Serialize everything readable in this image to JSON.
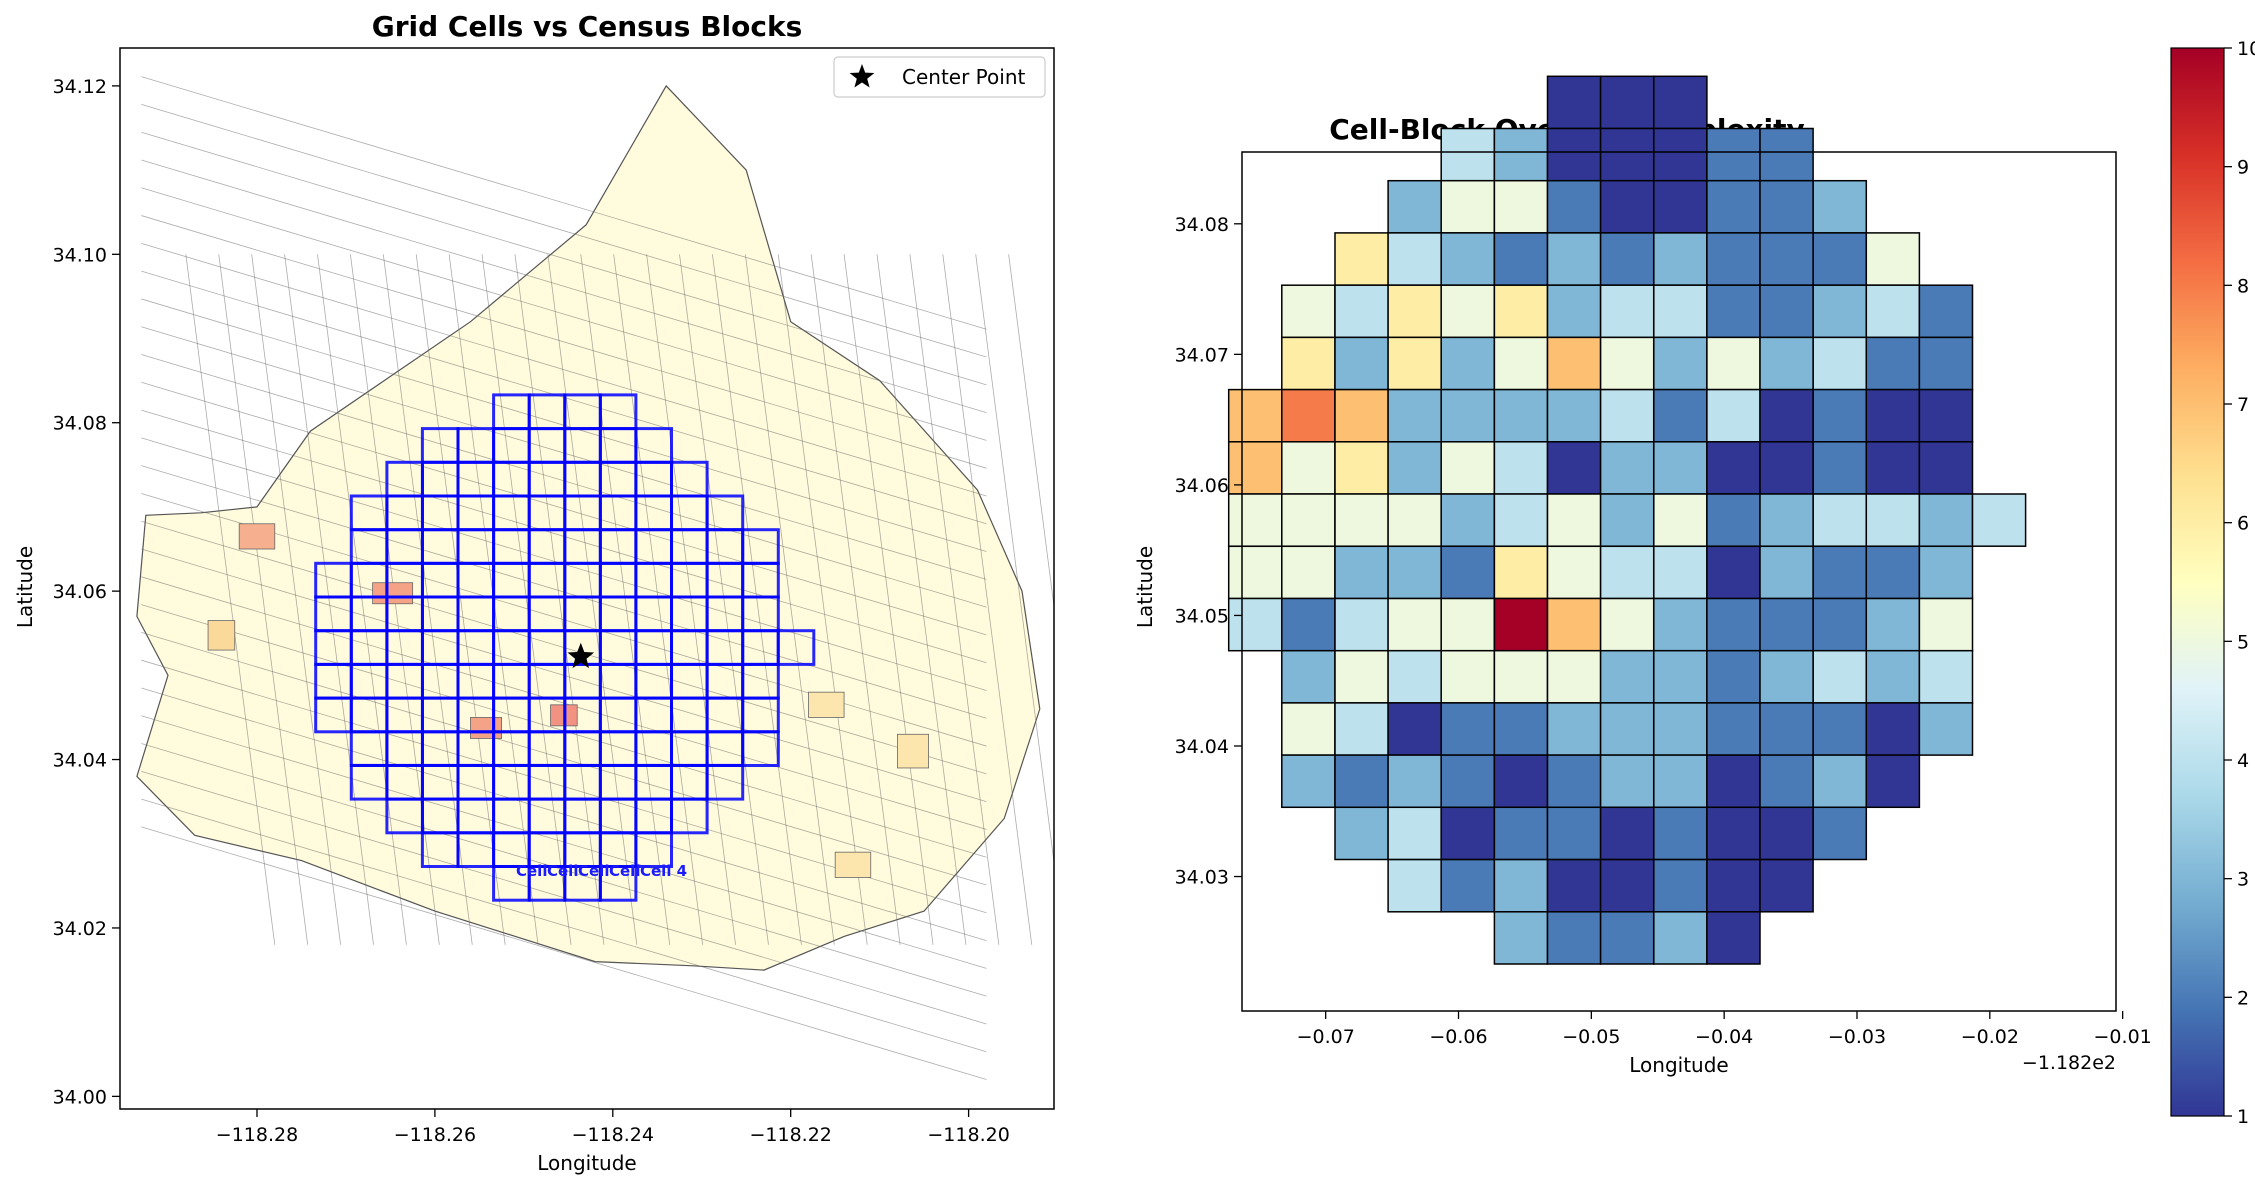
{
  "chart_data": [
    {
      "type": "map",
      "title": "Grid Cells vs Census Blocks",
      "xlabel": "Longitude",
      "ylabel": "Latitude",
      "xlim": [
        -118.2954,
        -118.1904
      ],
      "ylim": [
        33.9985,
        34.1245
      ],
      "xticks": [
        -118.28,
        -118.26,
        -118.24,
        -118.22,
        -118.2
      ],
      "xtick_labels": [
        "−118.28",
        "−118.26",
        "−118.24",
        "−118.22",
        "−118.20"
      ],
      "yticks": [
        34.0,
        34.02,
        34.04,
        34.06,
        34.08,
        34.1,
        34.12
      ],
      "ytick_labels": [
        "34.00",
        "34.02",
        "34.04",
        "34.06",
        "34.08",
        "34.10",
        "34.12"
      ],
      "legend": {
        "location": "upper right",
        "entries": [
          {
            "label": "Center Point",
            "marker": "star"
          }
        ]
      },
      "center_point": {
        "lon": -118.2436,
        "lat": 34.0522
      },
      "grid_cells": {
        "cell_size_deg": 0.004,
        "origin": [
          -118.2734,
          34.0233
        ],
        "rows_south_to_north": [
          [
            5,
            8
          ],
          [
            3,
            9
          ],
          [
            2,
            10
          ],
          [
            1,
            11
          ],
          [
            1,
            12
          ],
          [
            0,
            12
          ],
          [
            0,
            12
          ],
          [
            0,
            13
          ],
          [
            0,
            12
          ],
          [
            0,
            12
          ],
          [
            1,
            12
          ],
          [
            1,
            11
          ],
          [
            2,
            10
          ],
          [
            3,
            9
          ],
          [
            5,
            8
          ]
        ]
      },
      "cell_labels": [
        "Cell",
        "Cell",
        "Cell",
        "Cell",
        "Cell 4"
      ],
      "census_blocks_fill": "#fffbdc",
      "grid_color": "#0000ff"
    },
    {
      "type": "heatmap",
      "title": "Cell-Block Overlap Complexity",
      "xlabel": "Longitude",
      "ylabel": "Latitude",
      "x_offset_text": "−1.182e2",
      "xlim": [
        -0.0763,
        -0.0105
      ],
      "ylim": [
        34.0197,
        34.0855
      ],
      "xticks": [
        -0.07,
        -0.06,
        -0.05,
        -0.04,
        -0.03,
        -0.02,
        -0.01
      ],
      "xtick_labels": [
        "−0.07",
        "−0.06",
        "−0.05",
        "−0.04",
        "−0.03",
        "−0.02",
        "−0.01"
      ],
      "yticks": [
        34.03,
        34.04,
        34.05,
        34.06,
        34.07,
        34.08
      ],
      "ytick_labels": [
        "34.03",
        "34.04",
        "34.05",
        "34.06",
        "34.07",
        "34.08"
      ],
      "cell_size_deg": 0.004,
      "x_origin": -0.0733,
      "y_origin": 34.0233,
      "colorbar": {
        "min": 1,
        "max": 10,
        "ticks": [
          1,
          2,
          3,
          4,
          5,
          6,
          7,
          8,
          9,
          10
        ],
        "colormap": "RdYlBu_r"
      },
      "rows_north_to_south": [
        {
          "start_col": 5,
          "values": [
            1,
            1,
            1
          ]
        },
        {
          "start_col": 3,
          "values": [
            4,
            3,
            1,
            1,
            1,
            2,
            2
          ]
        },
        {
          "start_col": 2,
          "values": [
            3,
            5,
            5,
            2,
            1,
            1,
            2,
            2,
            3
          ]
        },
        {
          "start_col": 1,
          "values": [
            6,
            4,
            3,
            2,
            3,
            2,
            3,
            2,
            2,
            2,
            5
          ]
        },
        {
          "start_col": 0,
          "values": [
            5,
            4,
            6,
            5,
            6,
            3,
            4,
            4,
            2,
            2,
            3,
            4,
            2
          ]
        },
        {
          "start_col": 0,
          "values": [
            6,
            3,
            6,
            3,
            5,
            7,
            5,
            3,
            5,
            3,
            4,
            2,
            2
          ]
        },
        {
          "start_col": -1,
          "values": [
            7,
            8,
            7,
            3,
            3,
            3,
            3,
            4,
            2,
            4,
            1,
            2,
            1,
            1
          ]
        },
        {
          "start_col": -1,
          "values": [
            7,
            5,
            6,
            3,
            5,
            4,
            1,
            3,
            3,
            1,
            1,
            2,
            1,
            1
          ]
        },
        {
          "start_col": -1,
          "values": [
            5,
            5,
            5,
            5,
            3,
            4,
            5,
            3,
            5,
            2,
            3,
            4,
            4,
            3,
            4
          ]
        },
        {
          "start_col": -1,
          "values": [
            5,
            5,
            3,
            3,
            2,
            6,
            5,
            4,
            4,
            1,
            3,
            2,
            2,
            3
          ]
        },
        {
          "start_col": -1,
          "values": [
            4,
            2,
            4,
            5,
            5,
            10,
            7,
            5,
            3,
            2,
            2,
            2,
            3,
            5
          ]
        },
        {
          "start_col": 0,
          "values": [
            3,
            5,
            4,
            5,
            5,
            5,
            3,
            3,
            2,
            3,
            4,
            3,
            4
          ]
        },
        {
          "start_col": 0,
          "values": [
            5,
            4,
            1,
            2,
            2,
            3,
            3,
            3,
            2,
            2,
            2,
            1,
            3
          ]
        },
        {
          "start_col": 0,
          "values": [
            3,
            2,
            3,
            2,
            1,
            2,
            3,
            3,
            1,
            2,
            3,
            1
          ]
        },
        {
          "start_col": 1,
          "values": [
            3,
            4,
            1,
            2,
            2,
            1,
            2,
            1,
            1,
            2
          ]
        },
        {
          "start_col": 2,
          "values": [
            4,
            2,
            3,
            1,
            1,
            2,
            1,
            1
          ]
        },
        {
          "start_col": 4,
          "values": [
            3,
            2,
            2,
            3,
            1
          ]
        }
      ]
    }
  ]
}
